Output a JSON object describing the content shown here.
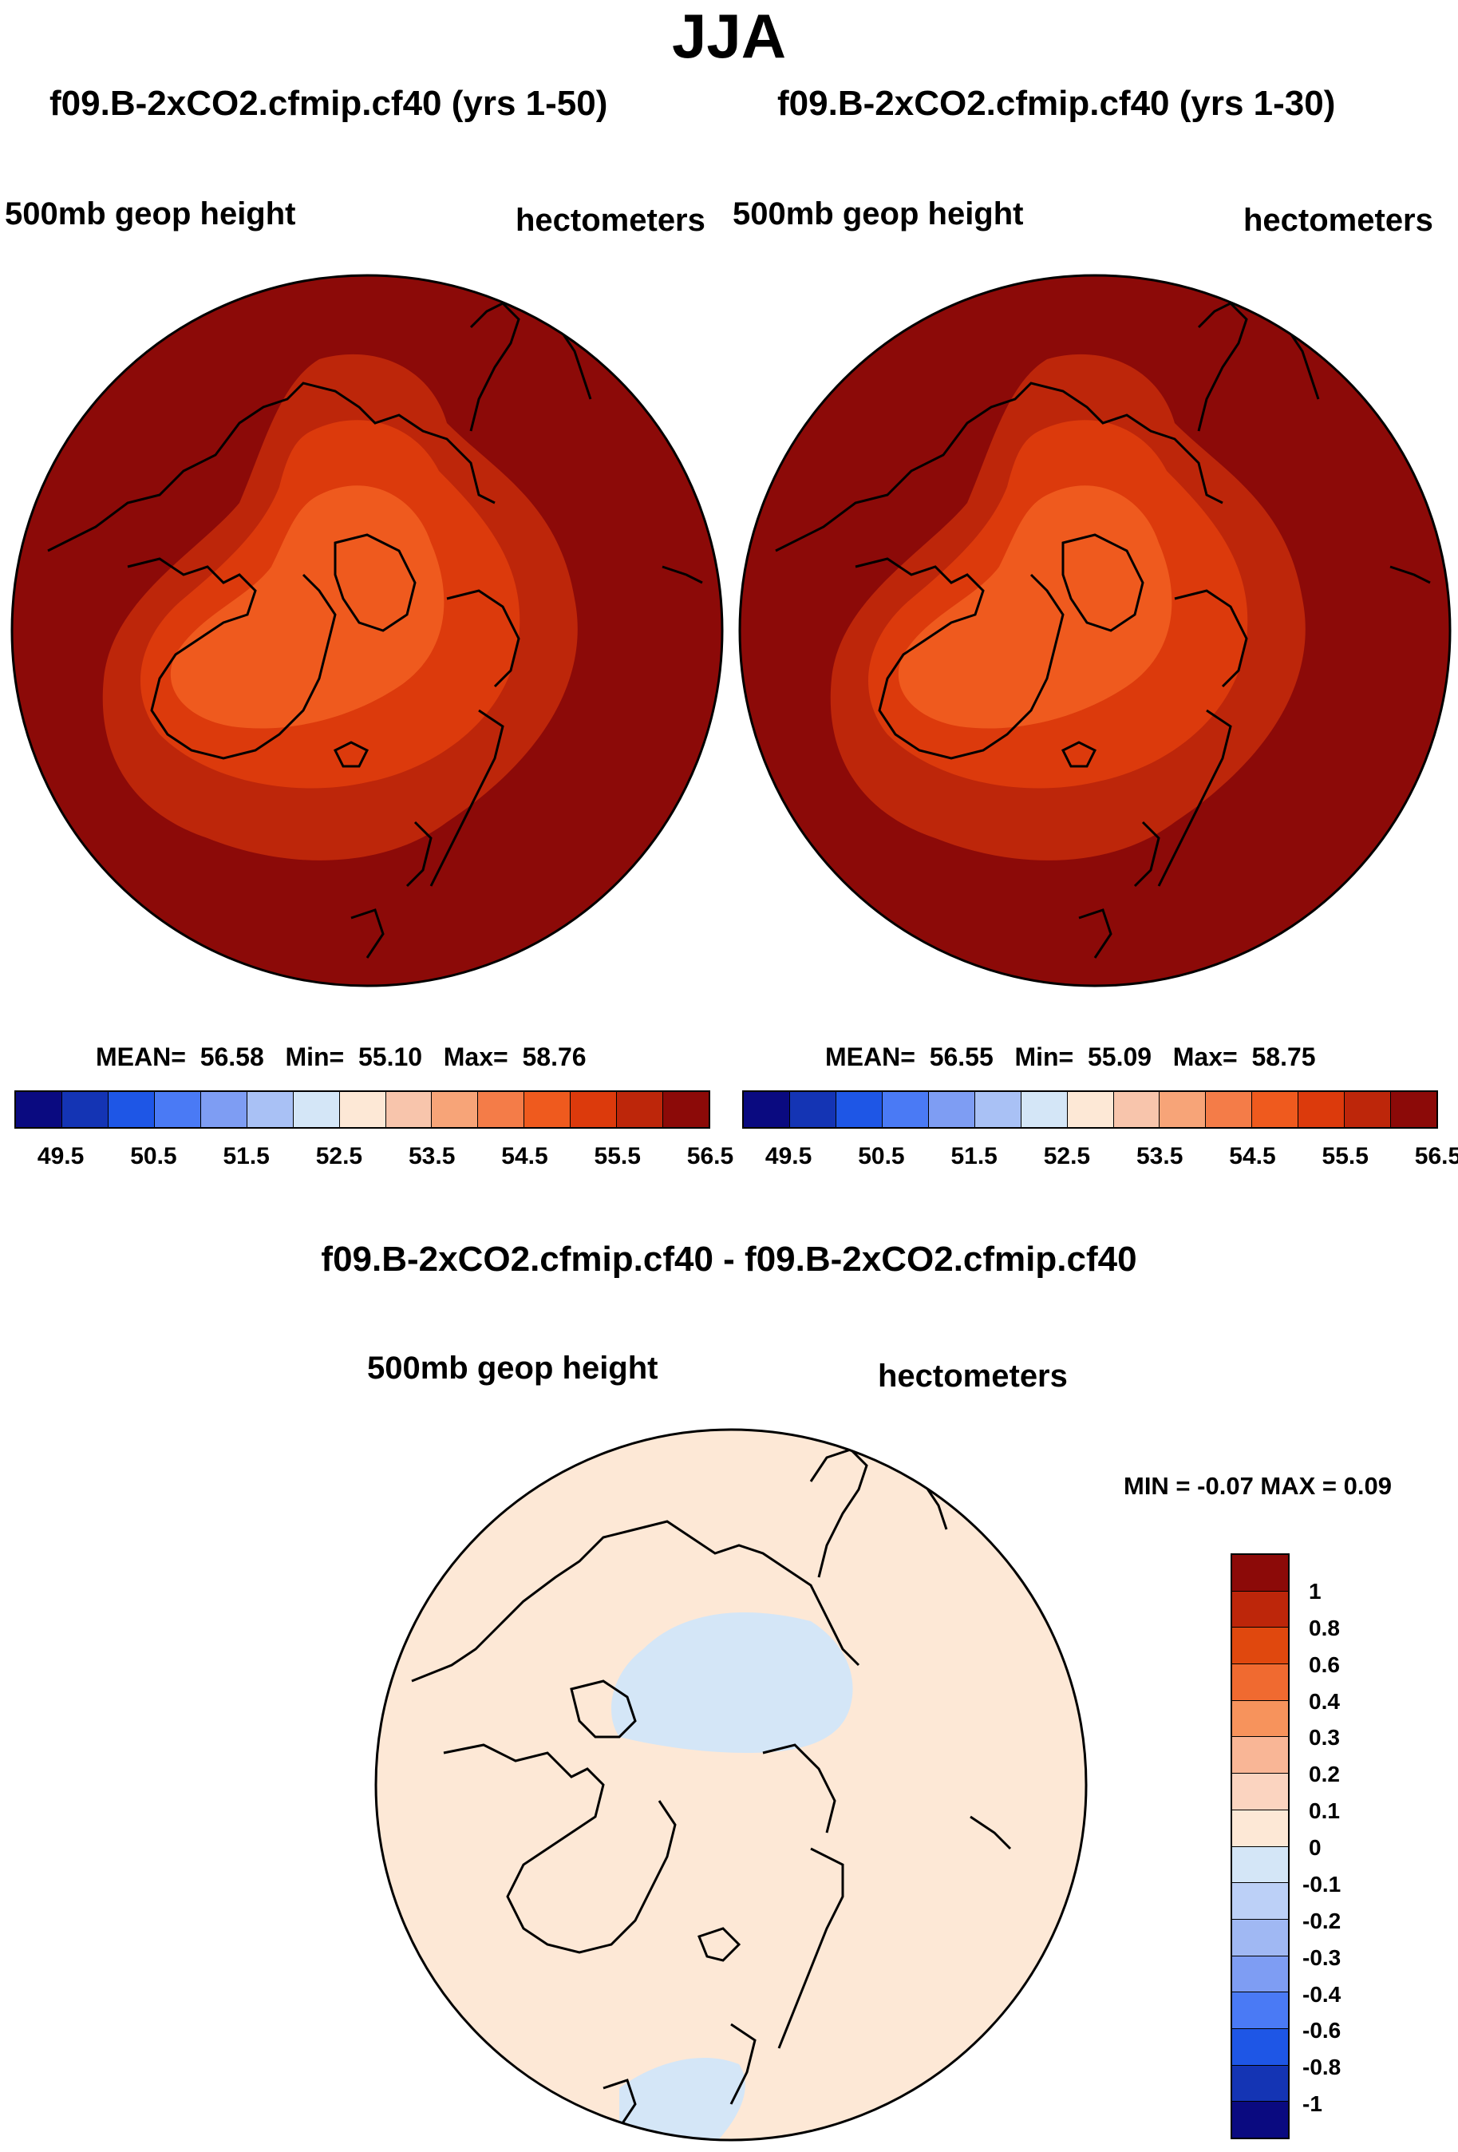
{
  "header": {
    "title": "JJA"
  },
  "panels": [
    {
      "title": "f09.B-2xCO2.cfmip.cf40 (yrs 1-50)",
      "left_label": "500mb geop height",
      "right_label": "hectometers",
      "stats": {
        "mean_label": "MEAN=",
        "mean": "56.58",
        "min_label": "Min=",
        "min": "55.10",
        "max_label": "Max=",
        "max": "58.76"
      }
    },
    {
      "title": "f09.B-2xCO2.cfmip.cf40 (yrs 1-30)",
      "left_label": "500mb geop height",
      "right_label": "hectometers",
      "stats": {
        "mean_label": "MEAN=",
        "mean": "56.55",
        "min_label": "Min=",
        "min": "55.09",
        "max_label": "Max=",
        "max": "58.75"
      }
    }
  ],
  "diff_panel": {
    "title": "f09.B-2xCO2.cfmip.cf40 - f09.B-2xCO2.cfmip.cf40",
    "left_label": "500mb geop height",
    "right_label": "hectometers",
    "minmax": "MIN =  -0.07 MAX =   0.09"
  },
  "colorbar_top": {
    "colors": [
      "#0a0a80",
      "#1434b4",
      "#1e56e6",
      "#4a7af5",
      "#7e9df3",
      "#a9c1f5",
      "#d4e6f7",
      "#fde8d6",
      "#f8c5ac",
      "#f7a478",
      "#f47c48",
      "#ef5a1e",
      "#dc3a0c",
      "#bd260a",
      "#8c0a08"
    ],
    "labels": [
      "49.5",
      "50.5",
      "51.5",
      "52.5",
      "53.5",
      "54.5",
      "55.5",
      "56.5"
    ]
  },
  "colorbar_diff": {
    "colors": [
      "#8c0a08",
      "#bd260a",
      "#e0480e",
      "#f06a30",
      "#f7935c",
      "#f9b696",
      "#fbd4c0",
      "#fde8d6",
      "#d4e6f7",
      "#bcd0f7",
      "#a0b8f3",
      "#7e9df3",
      "#4a7af5",
      "#1e56e6",
      "#1434b4",
      "#0a0a80"
    ],
    "labels": [
      "1",
      "0.8",
      "0.6",
      "0.4",
      "0.3",
      "0.2",
      "0.1",
      "0",
      "-0.1",
      "-0.2",
      "-0.3",
      "-0.4",
      "-0.6",
      "-0.8",
      "-1"
    ]
  },
  "map_colors": {
    "top_levels": [
      "#8c0a08",
      "#bd260a",
      "#dc3a0c",
      "#ef5a1e"
    ],
    "diff_base": "#fde8d6",
    "diff_negative": "#d4e6f7"
  }
}
